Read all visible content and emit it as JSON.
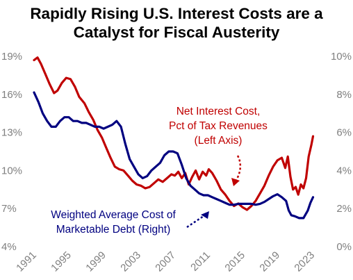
{
  "title_line1": "Rapidly Rising U.S. Interest Costs are a",
  "title_line2": "Catalyst for Fiscal Austerity",
  "chart_data": {
    "type": "line",
    "title": "Rapidly Rising U.S. Interest Costs are a Catalyst for Fiscal Austerity",
    "x_ticks": [
      "1991",
      "1995",
      "1999",
      "2003",
      "2007",
      "2011",
      "2015",
      "2019",
      "2023"
    ],
    "xlim": [
      1991,
      2023.3
    ],
    "left_axis": {
      "ticks": [
        "4%",
        "7%",
        "10%",
        "13%",
        "16%",
        "19%"
      ],
      "ylim": [
        4,
        19
      ]
    },
    "right_axis": {
      "ticks": [
        "0%",
        "2%",
        "4%",
        "6%",
        "8%",
        "10%"
      ],
      "ylim": [
        0,
        10
      ]
    },
    "grid": false,
    "series": [
      {
        "name": "Net Interest Cost, Pct of Tax Revenues (Left Axis)",
        "axis": "left",
        "color": "#c00000",
        "label_lines": [
          "Net Interest Cost,",
          "Pct of Tax Revenues",
          "(Left Axis)"
        ],
        "points": [
          [
            1991.0,
            18.7
          ],
          [
            1991.4,
            18.9
          ],
          [
            1991.8,
            18.4
          ],
          [
            1992.3,
            17.6
          ],
          [
            1992.8,
            16.8
          ],
          [
            1993.3,
            16.1
          ],
          [
            1993.7,
            16.3
          ],
          [
            1994.2,
            16.9
          ],
          [
            1994.7,
            17.3
          ],
          [
            1995.2,
            17.2
          ],
          [
            1995.7,
            16.6
          ],
          [
            1996.2,
            15.8
          ],
          [
            1996.8,
            15.3
          ],
          [
            1997.3,
            14.6
          ],
          [
            1997.8,
            14.0
          ],
          [
            1998.3,
            13.2
          ],
          [
            1998.8,
            12.6
          ],
          [
            1999.3,
            11.8
          ],
          [
            1999.8,
            11.0
          ],
          [
            2000.3,
            10.3
          ],
          [
            2000.8,
            10.1
          ],
          [
            2001.3,
            10.0
          ],
          [
            2001.8,
            9.6
          ],
          [
            2002.3,
            9.2
          ],
          [
            2002.8,
            8.9
          ],
          [
            2003.3,
            8.8
          ],
          [
            2003.8,
            8.6
          ],
          [
            2004.3,
            8.7
          ],
          [
            2004.8,
            9.0
          ],
          [
            2005.3,
            9.3
          ],
          [
            2005.8,
            9.1
          ],
          [
            2006.3,
            9.4
          ],
          [
            2006.8,
            9.7
          ],
          [
            2007.2,
            9.6
          ],
          [
            2007.6,
            9.9
          ],
          [
            2008.0,
            9.4
          ],
          [
            2008.4,
            9.8
          ],
          [
            2008.8,
            8.9
          ],
          [
            2009.2,
            9.5
          ],
          [
            2009.6,
            10.0
          ],
          [
            2010.0,
            9.3
          ],
          [
            2010.4,
            9.9
          ],
          [
            2010.8,
            9.6
          ],
          [
            2011.1,
            10.1
          ],
          [
            2011.5,
            9.8
          ],
          [
            2012.0,
            9.2
          ],
          [
            2012.5,
            8.5
          ],
          [
            2013.0,
            8.1
          ],
          [
            2013.5,
            7.6
          ],
          [
            2014.0,
            7.2
          ],
          [
            2014.5,
            7.4
          ],
          [
            2015.0,
            7.1
          ],
          [
            2015.5,
            6.9
          ],
          [
            2016.0,
            7.2
          ],
          [
            2016.5,
            7.6
          ],
          [
            2017.0,
            8.2
          ],
          [
            2017.5,
            8.8
          ],
          [
            2018.0,
            9.6
          ],
          [
            2018.5,
            10.3
          ],
          [
            2019.0,
            10.8
          ],
          [
            2019.5,
            11.0
          ],
          [
            2019.9,
            10.2
          ],
          [
            2020.2,
            11.1
          ],
          [
            2020.5,
            9.5
          ],
          [
            2020.8,
            8.5
          ],
          [
            2021.1,
            8.7
          ],
          [
            2021.4,
            8.1
          ],
          [
            2021.7,
            8.9
          ],
          [
            2022.0,
            8.6
          ],
          [
            2022.3,
            9.4
          ],
          [
            2022.6,
            11.1
          ],
          [
            2022.9,
            12.0
          ],
          [
            2023.1,
            12.7
          ]
        ]
      },
      {
        "name": "Weighted Average Cost of Marketable Debt (Right)",
        "axis": "right",
        "color": "#000080",
        "label_lines": [
          "Weighted Average Cost of",
          "Marketable Debt (Right)"
        ],
        "points": [
          [
            1991.0,
            8.1
          ],
          [
            1991.5,
            7.6
          ],
          [
            1992.0,
            7.0
          ],
          [
            1992.5,
            6.6
          ],
          [
            1993.0,
            6.3
          ],
          [
            1993.5,
            6.3
          ],
          [
            1994.0,
            6.6
          ],
          [
            1994.5,
            6.8
          ],
          [
            1995.0,
            6.8
          ],
          [
            1995.5,
            6.6
          ],
          [
            1996.0,
            6.6
          ],
          [
            1996.5,
            6.5
          ],
          [
            1997.0,
            6.5
          ],
          [
            1997.5,
            6.4
          ],
          [
            1998.0,
            6.3
          ],
          [
            1998.5,
            6.3
          ],
          [
            1999.0,
            6.2
          ],
          [
            1999.5,
            6.3
          ],
          [
            2000.0,
            6.4
          ],
          [
            2000.5,
            6.6
          ],
          [
            2001.0,
            6.3
          ],
          [
            2001.5,
            5.4
          ],
          [
            2002.0,
            4.6
          ],
          [
            2002.5,
            4.2
          ],
          [
            2003.0,
            3.8
          ],
          [
            2003.5,
            3.6
          ],
          [
            2004.0,
            3.7
          ],
          [
            2004.5,
            4.0
          ],
          [
            2005.0,
            4.2
          ],
          [
            2005.5,
            4.4
          ],
          [
            2006.0,
            4.8
          ],
          [
            2006.5,
            5.0
          ],
          [
            2007.0,
            5.0
          ],
          [
            2007.5,
            4.9
          ],
          [
            2008.0,
            4.3
          ],
          [
            2008.5,
            3.6
          ],
          [
            2009.0,
            3.2
          ],
          [
            2009.5,
            3.0
          ],
          [
            2010.0,
            2.8
          ],
          [
            2010.5,
            2.7
          ],
          [
            2011.0,
            2.7
          ],
          [
            2011.5,
            2.6
          ],
          [
            2012.0,
            2.5
          ],
          [
            2012.5,
            2.4
          ],
          [
            2013.0,
            2.3
          ],
          [
            2013.5,
            2.2
          ],
          [
            2014.0,
            2.2
          ],
          [
            2014.5,
            2.25
          ],
          [
            2015.0,
            2.25
          ],
          [
            2015.5,
            2.25
          ],
          [
            2016.0,
            2.25
          ],
          [
            2016.5,
            2.2
          ],
          [
            2017.0,
            2.25
          ],
          [
            2017.5,
            2.35
          ],
          [
            2018.0,
            2.5
          ],
          [
            2018.5,
            2.65
          ],
          [
            2019.0,
            2.75
          ],
          [
            2019.5,
            2.6
          ],
          [
            2020.0,
            2.4
          ],
          [
            2020.3,
            1.9
          ],
          [
            2020.6,
            1.65
          ],
          [
            2021.0,
            1.6
          ],
          [
            2021.5,
            1.5
          ],
          [
            2022.0,
            1.5
          ],
          [
            2022.5,
            1.9
          ],
          [
            2022.8,
            2.3
          ],
          [
            2023.1,
            2.6
          ]
        ]
      }
    ]
  }
}
